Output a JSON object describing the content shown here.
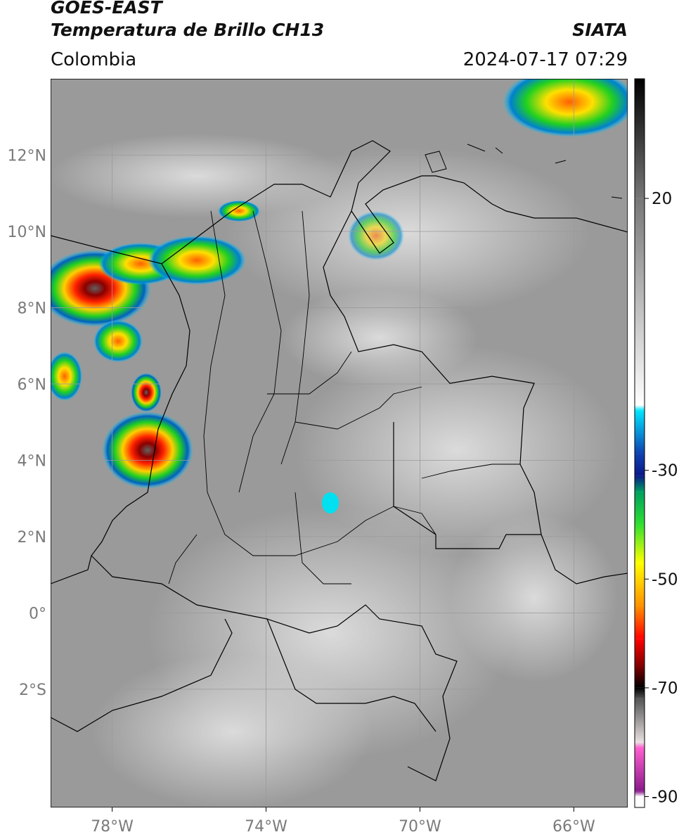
{
  "header": {
    "satellite": "GOES-EAST",
    "product": "Temperatura de Brillo CH13",
    "region": "Colombia",
    "source": "SIATA",
    "datetime": "2024-07-17 07:29"
  },
  "map": {
    "lat_labels": [
      "12°N",
      "10°N",
      "8°N",
      "6°N",
      "4°N",
      "2°N",
      "0°",
      "2°S"
    ],
    "lat_values": [
      12,
      10,
      8,
      6,
      4,
      2,
      0,
      -2
    ],
    "lon_labels": [
      "78°W",
      "74°W",
      "70°W",
      "66°W"
    ],
    "lon_values": [
      -78,
      -74,
      -70,
      -66
    ],
    "lon_range": [
      -79.6,
      -64.6
    ],
    "lat_range": [
      -5.1,
      14.0
    ],
    "gridlines": true,
    "gridline_color": "#9a9a9a",
    "background_color": "#9a9a9a",
    "cloud_color": "#d6d6d6",
    "border_color": "#000000"
  },
  "colorbar": {
    "tick_labels": [
      "20",
      "-30",
      "-50",
      "-70",
      "-90"
    ],
    "tick_values": [
      20,
      -30,
      -50,
      -70,
      -90
    ],
    "range": [
      -92,
      42
    ],
    "stops": [
      {
        "value": 42,
        "color": "#000000"
      },
      {
        "value": 20,
        "color": "#777777"
      },
      {
        "value": -18,
        "color": "#ffffff"
      },
      {
        "value": -19,
        "color": "#00e5ff"
      },
      {
        "value": -27,
        "color": "#1040b0"
      },
      {
        "value": -31,
        "color": "#0a1a8a"
      },
      {
        "value": -34,
        "color": "#00a060"
      },
      {
        "value": -40,
        "color": "#30e030"
      },
      {
        "value": -47,
        "color": "#ffff00"
      },
      {
        "value": -55,
        "color": "#ff9000"
      },
      {
        "value": -61,
        "color": "#ff0000"
      },
      {
        "value": -66,
        "color": "#800000"
      },
      {
        "value": -70,
        "color": "#000000"
      },
      {
        "value": -72,
        "color": "#555555"
      },
      {
        "value": -80,
        "color": "#e8e0e0"
      },
      {
        "value": -81,
        "color": "#ff60d0"
      },
      {
        "value": -89,
        "color": "#8a1a8a"
      },
      {
        "value": -90,
        "color": "#ffffff"
      }
    ]
  }
}
